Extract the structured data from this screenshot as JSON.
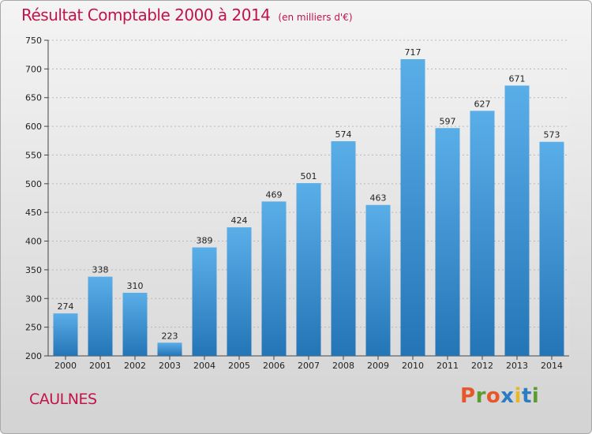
{
  "chart_data": {
    "type": "bar",
    "title": "Résultat Comptable 2000 à 2014",
    "unit": "(en milliers d'€)",
    "categories": [
      "2000",
      "2001",
      "2002",
      "2003",
      "2004",
      "2005",
      "2006",
      "2007",
      "2008",
      "2009",
      "2010",
      "2011",
      "2012",
      "2013",
      "2014"
    ],
    "values": [
      274,
      338,
      310,
      223,
      389,
      424,
      469,
      501,
      574,
      463,
      717,
      597,
      627,
      671,
      573
    ],
    "ylim": [
      200,
      750
    ],
    "yticks": [
      200,
      250,
      300,
      350,
      400,
      450,
      500,
      550,
      600,
      650,
      700,
      750
    ],
    "xlabel": "",
    "ylabel": "",
    "grid": true
  },
  "location": "CAULNES",
  "logo": {
    "letters": [
      "P",
      "r",
      "o",
      "x",
      "i",
      "t",
      "i"
    ]
  },
  "colors": {
    "title": "#c0144a",
    "bar_top": "#5aaee8",
    "bar_bottom": "#2475b6",
    "logo": [
      "#e8572a",
      "#5c9c2e",
      "#e8572a",
      "#2d7cc1",
      "#e8b62a",
      "#2d7cc1",
      "#5c9c2e"
    ]
  }
}
